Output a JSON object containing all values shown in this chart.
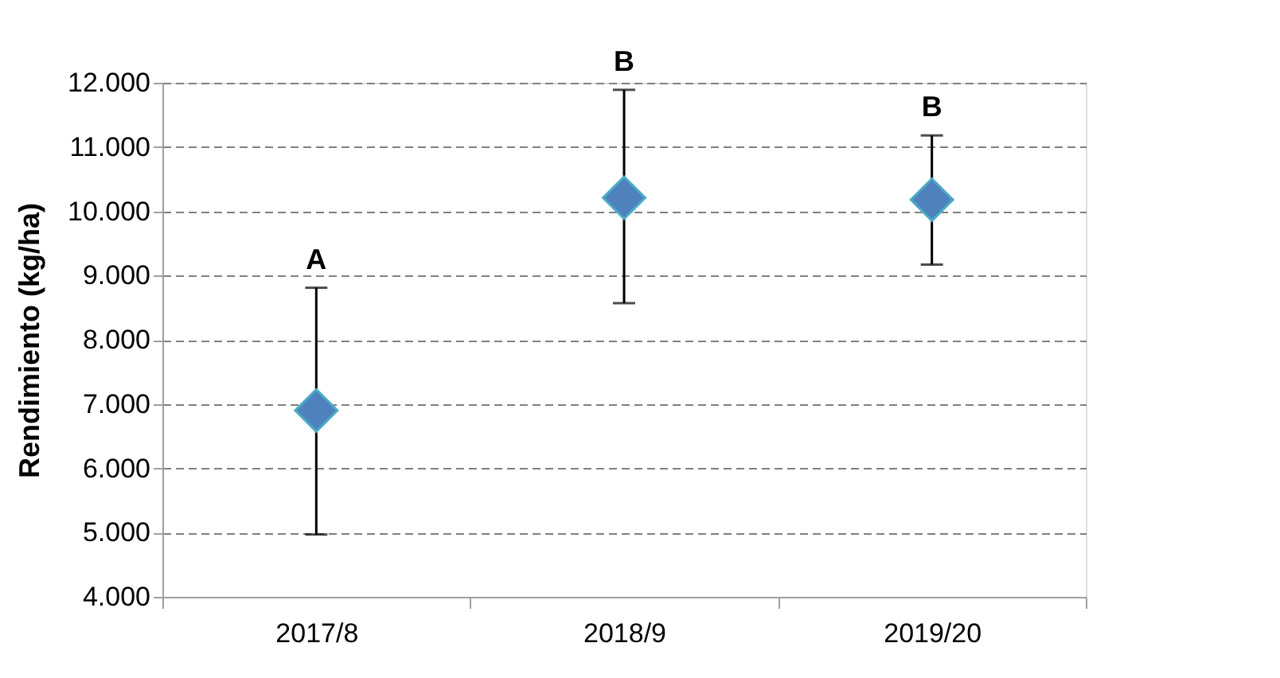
{
  "chart_data": {
    "type": "scatter",
    "ylabel": "Rendimiento (kg/ha)",
    "categories": [
      "2017/8",
      "2018/9",
      "2019/20"
    ],
    "series": [
      {
        "color": "#4f81bd",
        "values": [
          6900,
          10210,
          10180
        ],
        "errors": [
          [
            4970,
            8810
          ],
          [
            8570,
            11890
          ],
          [
            9170,
            11180
          ]
        ]
      }
    ],
    "marker": "diamond",
    "grid": "y",
    "ylim": [
      4000,
      12000
    ],
    "yticks": [
      {
        "value": 4000,
        "label": "4.000"
      },
      {
        "value": 5000,
        "label": "5.000"
      },
      {
        "value": 6000,
        "label": "6.000"
      },
      {
        "value": 7000,
        "label": "7.000"
      },
      {
        "value": 8000,
        "label": "8.000"
      },
      {
        "value": 9000,
        "label": "9.000"
      },
      {
        "value": 10000,
        "label": "10.000"
      },
      {
        "value": 11000,
        "label": "11.000"
      },
      {
        "value": 12000,
        "label": "12.000"
      }
    ],
    "annotations": [
      "A",
      "B",
      "B"
    ]
  }
}
